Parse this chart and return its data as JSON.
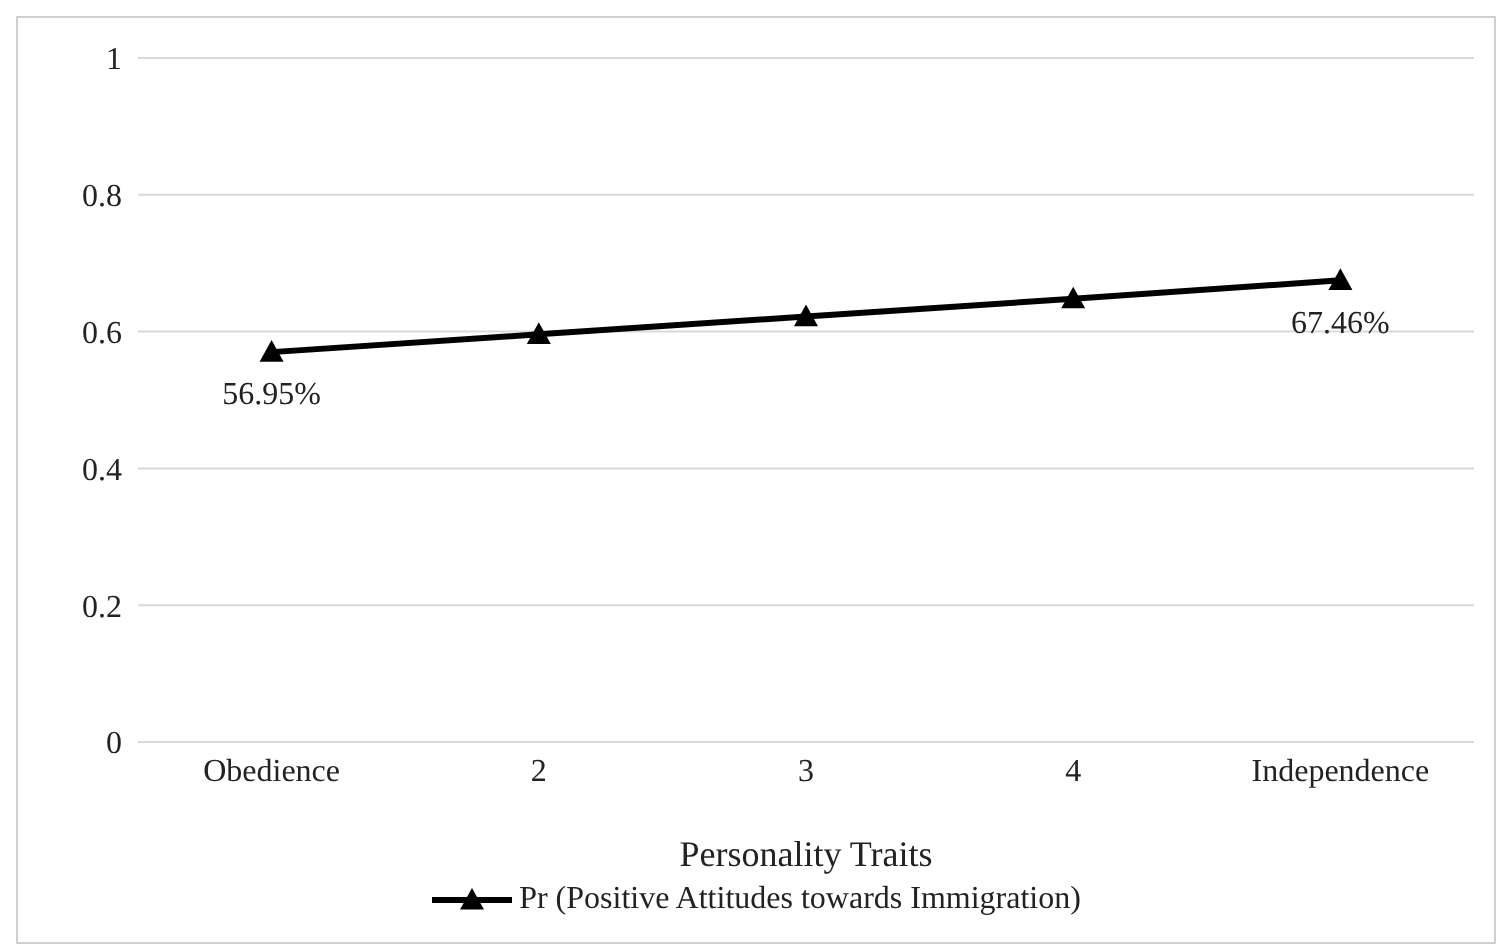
{
  "chart_data": {
    "type": "line",
    "xlabel": "Personality Traits",
    "categories": [
      "Obedience",
      "2",
      "3",
      "4",
      "Independence"
    ],
    "series": [
      {
        "name": "Pr (Positive Attitudes towards Immigration)",
        "color": "#000000",
        "values": [
          0.57,
          0.596,
          0.622,
          0.648,
          0.675
        ]
      }
    ],
    "ylim": [
      0,
      1
    ],
    "yticks": [
      0,
      0.2,
      0.4,
      0.6,
      0.8,
      1
    ],
    "grid": "y",
    "legend": "bottom",
    "marker": "triangle",
    "line_style": "solid",
    "annotations": [
      {
        "text": "56.95%",
        "x": "Obedience",
        "y": 0.5695
      },
      {
        "text": "67.46%",
        "x": "Independence",
        "y": 0.6746
      }
    ]
  }
}
